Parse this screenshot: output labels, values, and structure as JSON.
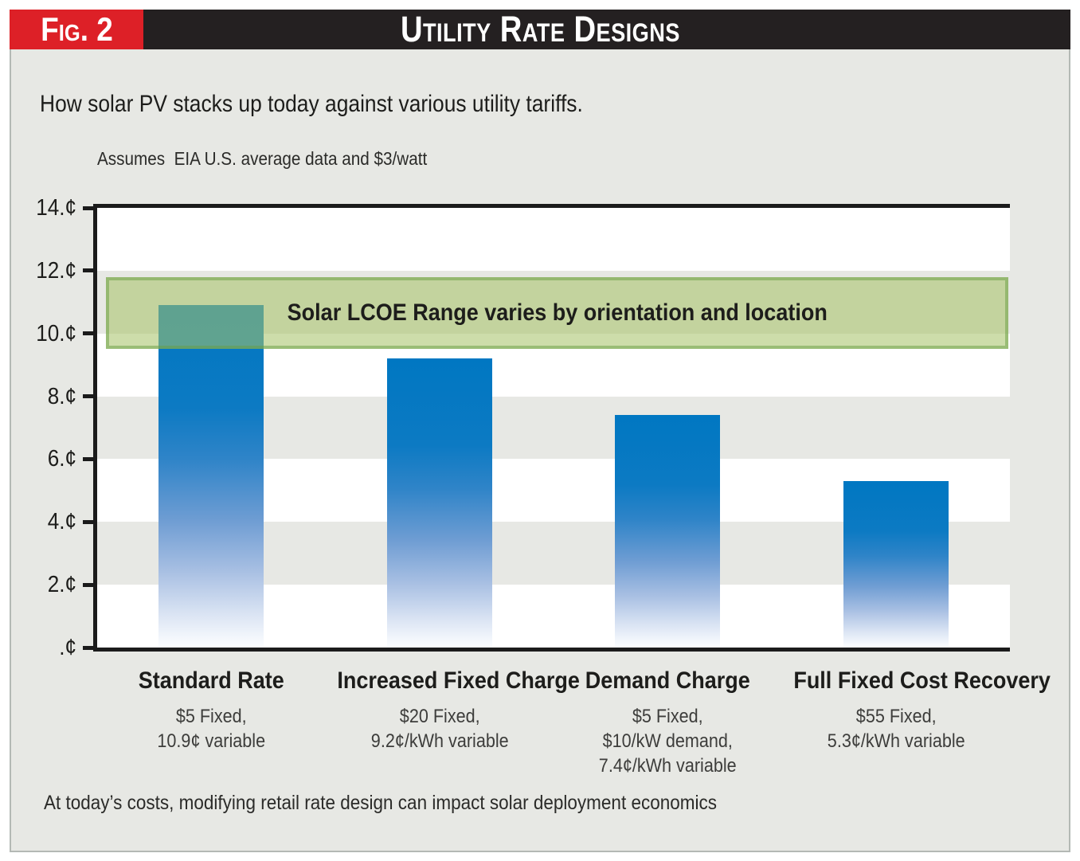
{
  "figure": {
    "label": "Fig. 2",
    "title": "Utility Rate Designs",
    "subtitle": "How solar PV stacks up today against various utility tariffs.",
    "assumption_note": "Assumes  EIA U.S. average data and $3/watt",
    "footer_note": "At today’s costs, modifying retail rate design can impact solar deployment economics"
  },
  "chart_data": {
    "type": "bar",
    "title": "Utility Rate Designs",
    "xlabel": "",
    "ylabel": "",
    "unit": "¢",
    "ylim": [
      0,
      14
    ],
    "y_tick_step": 2,
    "y_tick_labels": [
      "14.¢",
      "12.¢",
      "10.¢",
      "8.¢",
      "6.¢",
      "4.¢",
      "2.¢",
      ".¢"
    ],
    "grid": "alternating horizontal bands every 2 cents (white / light gray), no vertical gridlines",
    "legend": "none",
    "categories": [
      "Standard Rate",
      "Increased Fixed Charge",
      "Demand Charge",
      "Full Fixed Cost Recovery"
    ],
    "values": [
      10.9,
      9.2,
      7.4,
      5.3
    ],
    "category_details": [
      [
        "$5 Fixed,",
        "10.9¢ variable"
      ],
      [
        "$20 Fixed,",
        "9.2¢/kWh variable"
      ],
      [
        "$5 Fixed,",
        "$10/kW demand,",
        "7.4¢/kWh variable"
      ],
      [
        "$55 Fixed,",
        "5.3¢/kWh variable"
      ]
    ],
    "annotation": {
      "text": "Solar LCOE Range varies by orientation and location",
      "y_from": 9.5,
      "y_to": 11.8
    }
  },
  "colors": {
    "accent_red": "#dd2027",
    "header_black": "#242021",
    "panel_gray": "#e7e8e4",
    "bar_blue_top": "#0077c2",
    "bar_fade_bottom": "#fbfdff",
    "lcoe_band_fill": "#cfdead",
    "lcoe_band_border": "#9cc48c",
    "axis_black": "#1b1b1b"
  }
}
